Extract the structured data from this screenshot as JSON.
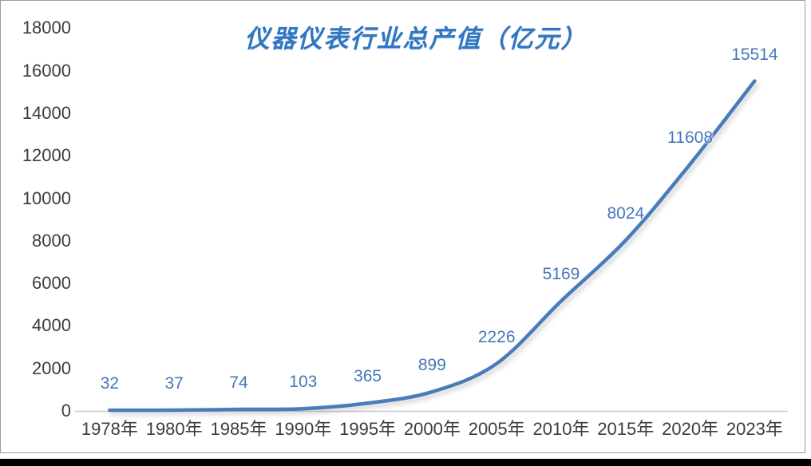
{
  "chart_data": {
    "type": "line",
    "title": "仪器仪表行业总产值（亿元）",
    "categories": [
      "1978年",
      "1980年",
      "1985年",
      "1990年",
      "1995年",
      "2000年",
      "2005年",
      "2010年",
      "2015年",
      "2020年",
      "2023年"
    ],
    "series": [
      {
        "name": "总产值",
        "values": [
          32,
          37,
          74,
          103,
          365,
          899,
          2226,
          5169,
          8024,
          11608,
          15514
        ]
      }
    ],
    "data_labels": [
      "32",
      "37",
      "74",
      "103",
      "365",
      "899",
      "2226",
      "5169",
      "8024",
      "11608",
      "15514"
    ],
    "xlabel": "",
    "ylabel": "",
    "ylim": [
      0,
      18000
    ],
    "ytick_step": 2000,
    "yticks": [
      0,
      2000,
      4000,
      6000,
      8000,
      10000,
      12000,
      14000,
      16000,
      18000
    ],
    "grid": false,
    "legend_position": "none",
    "line_smoothing": true,
    "colors": {
      "line": "#4A7CB9",
      "data_label": "#4577B9",
      "title": "#2F77C2",
      "axis_label": "#3D3D3D",
      "axis_line": "#C9C9C9",
      "frame_border": "#9A9A9A",
      "bottom_bar": "#010101"
    }
  }
}
